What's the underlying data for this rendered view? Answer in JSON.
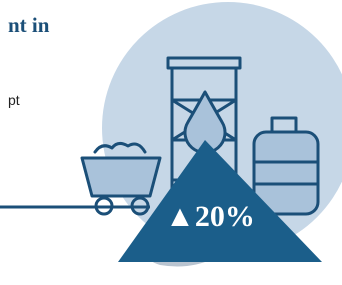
{
  "header": {
    "title": "nt in",
    "text": "pt"
  },
  "badge": {
    "label": "▲20%"
  }
}
